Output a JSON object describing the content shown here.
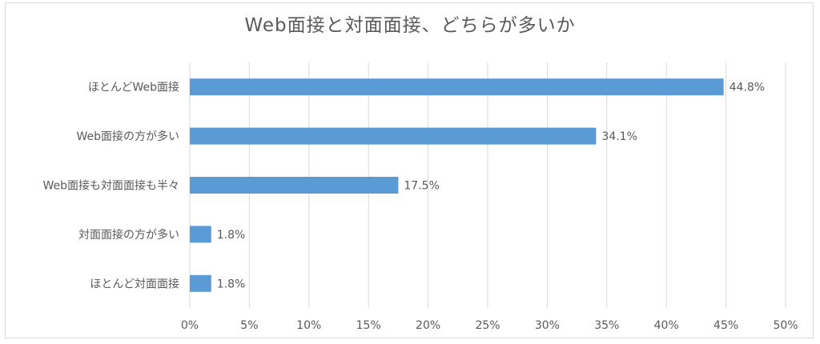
{
  "chart_data": {
    "type": "bar",
    "orientation": "horizontal",
    "title": "Web面接と対面面接、どちらが多いか",
    "categories": [
      "ほとんどWeb面接",
      "Web面接の方が多い",
      "Web面接も対面面接も半々",
      "対面面接の方が多い",
      "ほとんど対面面接"
    ],
    "values": [
      44.8,
      34.1,
      17.5,
      1.8,
      1.8
    ],
    "value_labels": [
      "44.8%",
      "34.1%",
      "17.5%",
      "1.8%",
      "1.8%"
    ],
    "xlim": [
      0,
      50
    ],
    "x_ticks": [
      "0%",
      "5%",
      "10%",
      "15%",
      "20%",
      "25%",
      "30%",
      "35%",
      "40%",
      "45%",
      "50%"
    ],
    "grid": "vertical",
    "bar_color": "#5b9bd5",
    "xlabel": "",
    "ylabel": ""
  }
}
